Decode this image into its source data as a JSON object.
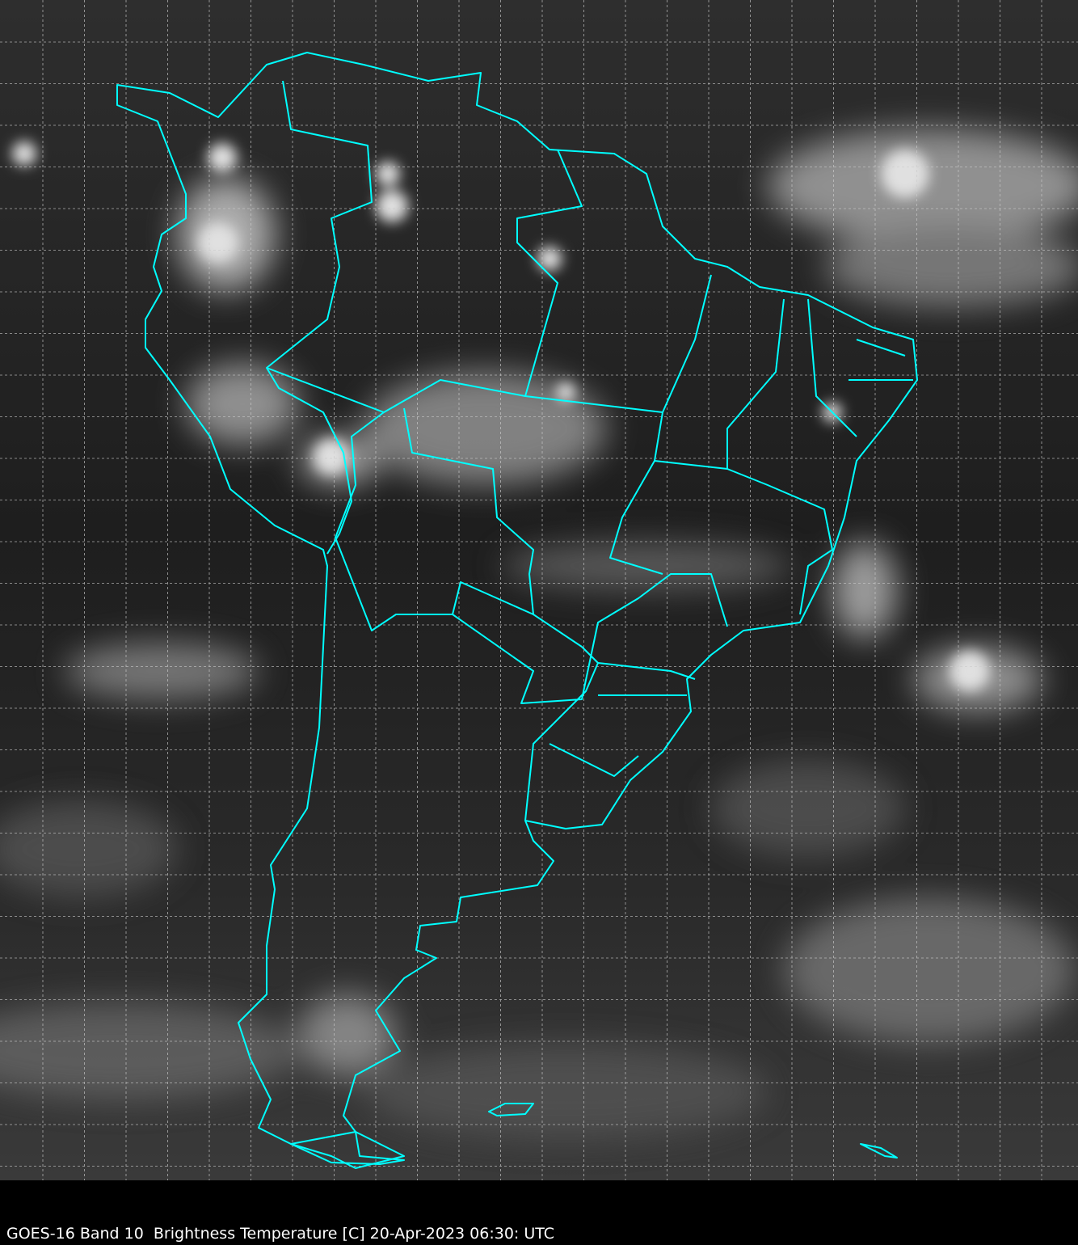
{
  "caption": "GOES-16 Band 10  Brightness Temperature [C] 20-Apr-2023 06:30: UTC",
  "map": {
    "region": "South America",
    "product": "infrared brightness temperature (grayscale)",
    "border_color": "#00ffff",
    "grid_color": "#cccccc",
    "grid_style": "dashed",
    "background_color": "#000000"
  }
}
